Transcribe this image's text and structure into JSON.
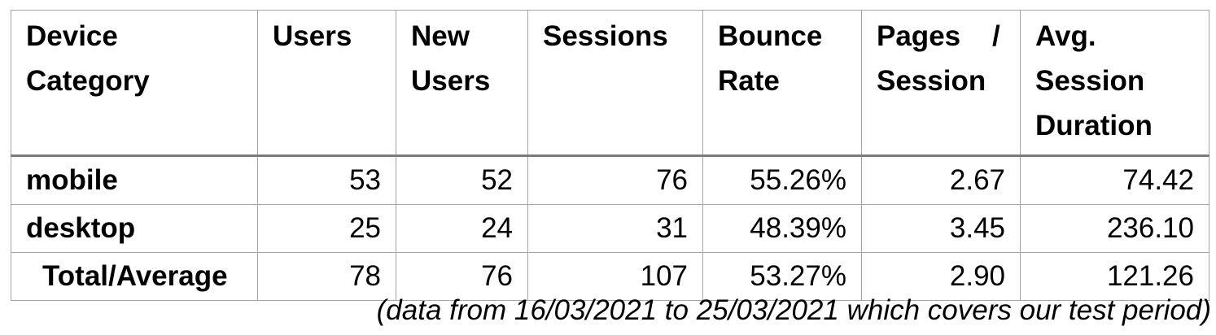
{
  "table": {
    "headers": [
      "Device Category",
      "Users",
      "New Users",
      "Sessions",
      "Bounce Rate",
      "Pages / Session",
      "Avg. Session Duration"
    ],
    "rows": [
      {
        "device": "mobile",
        "users": "53",
        "new_users": "52",
        "sessions": "76",
        "bounce_rate": "55.26%",
        "pages_per_session": "2.67",
        "avg_session_duration": "74.42"
      },
      {
        "device": "desktop",
        "users": "25",
        "new_users": "24",
        "sessions": "31",
        "bounce_rate": "48.39%",
        "pages_per_session": "3.45",
        "avg_session_duration": "236.10"
      },
      {
        "device": "Total/Average",
        "users": "78",
        "new_users": "76",
        "sessions": "107",
        "bounce_rate": "53.27%",
        "pages_per_session": "2.90",
        "avg_session_duration": "121.26"
      }
    ]
  },
  "caption": "(data from 16/03/2021 to 25/03/2021 which covers our test period)"
}
